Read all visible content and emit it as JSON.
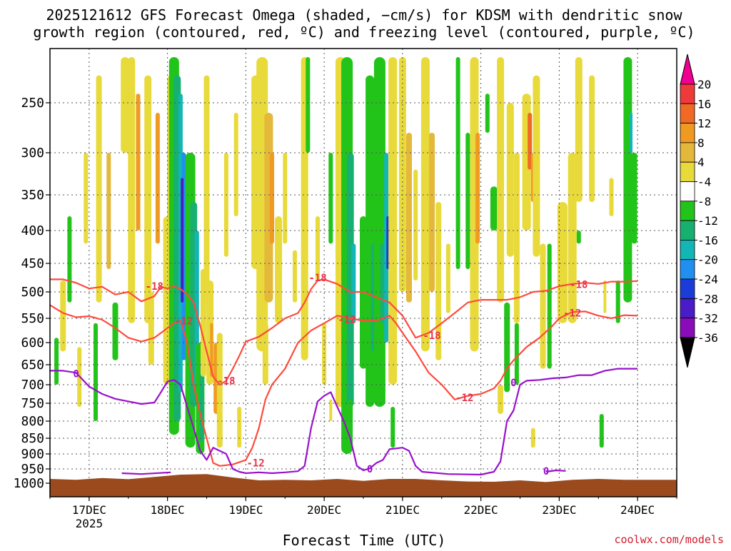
{
  "chart_data": {
    "type": "time-height-section",
    "title_lines": [
      "2025121612 GFS Forecast Omega (shaded, −cm/s) for KDSM with dendritic snow",
      "growth region (contoured, red, ºC) and freezing level (contoured, purple, ºC)"
    ],
    "xlabel": "Forecast Time (UTC)",
    "credit": "coolwx.com/models",
    "x_range_hours": [
      -12,
      180
    ],
    "x_ticks": [
      {
        "hour": 0,
        "label": "17DEC",
        "sublabel": "2025"
      },
      {
        "hour": 24,
        "label": "18DEC",
        "sublabel": ""
      },
      {
        "hour": 48,
        "label": "19DEC",
        "sublabel": ""
      },
      {
        "hour": 72,
        "label": "20DEC",
        "sublabel": ""
      },
      {
        "hour": 96,
        "label": "21DEC",
        "sublabel": ""
      },
      {
        "hour": 120,
        "label": "22DEC",
        "sublabel": ""
      },
      {
        "hour": 144,
        "label": "23DEC",
        "sublabel": ""
      },
      {
        "hour": 168,
        "label": "24DEC",
        "sublabel": ""
      }
    ],
    "y_axis": {
      "unit": "hPa",
      "range": [
        200,
        1025
      ],
      "ticks": [
        250,
        300,
        350,
        400,
        450,
        500,
        550,
        600,
        650,
        700,
        750,
        800,
        850,
        900,
        950,
        1000
      ]
    },
    "colorbar": {
      "levels": [
        20,
        16,
        12,
        8,
        4,
        -4,
        -8,
        -12,
        -16,
        -20,
        -24,
        -28,
        -32,
        -36
      ],
      "colors": [
        "#f00090",
        "#ee3a3a",
        "#f06a26",
        "#f09a22",
        "#e4b83a",
        "#e8da3a",
        "#ffffff",
        "#22c41a",
        "#18b070",
        "#12b6b4",
        "#2090f0",
        "#1c3cd8",
        "#4a1cc8",
        "#8a0cb8",
        "#a8a8a8",
        "#000000"
      ]
    },
    "colors": {
      "ground": "#9b4a1e",
      "dgz_contour": "#ff4a3c",
      "freezing_contour": "#9a10cc",
      "grid": "#555555"
    },
    "contour_labels": {
      "dgz_upper": "-18",
      "dgz_lower": "-12",
      "freezing": "0"
    },
    "series": [
      {
        "name": "-18C isotherm (pressure, hPa)",
        "points": [
          [
            -12,
            478
          ],
          [
            -8,
            478
          ],
          [
            -4,
            484
          ],
          [
            0,
            494
          ],
          [
            4,
            491
          ],
          [
            8,
            505
          ],
          [
            12,
            500
          ],
          [
            16,
            518
          ],
          [
            20,
            508
          ],
          [
            22,
            491
          ],
          [
            24,
            494
          ],
          [
            26,
            490
          ],
          [
            28,
            495
          ],
          [
            30,
            504
          ],
          [
            32,
            520
          ],
          [
            34,
            565
          ],
          [
            36,
            620
          ],
          [
            38,
            680
          ],
          [
            40,
            700
          ],
          [
            42,
            690
          ],
          [
            44,
            660
          ],
          [
            46,
            630
          ],
          [
            48,
            598
          ],
          [
            52,
            588
          ],
          [
            56,
            570
          ],
          [
            60,
            550
          ],
          [
            64,
            540
          ],
          [
            66,
            520
          ],
          [
            68,
            495
          ],
          [
            70,
            480
          ],
          [
            72,
            478
          ],
          [
            76,
            486
          ],
          [
            80,
            500
          ],
          [
            84,
            500
          ],
          [
            88,
            510
          ],
          [
            92,
            520
          ],
          [
            96,
            545
          ],
          [
            100,
            590
          ],
          [
            104,
            580
          ],
          [
            108,
            560
          ],
          [
            112,
            540
          ],
          [
            116,
            520
          ],
          [
            120,
            515
          ],
          [
            124,
            515
          ],
          [
            128,
            515
          ],
          [
            132,
            510
          ],
          [
            136,
            500
          ],
          [
            140,
            498
          ],
          [
            144,
            490
          ],
          [
            148,
            486
          ],
          [
            152,
            484
          ],
          [
            156,
            486
          ],
          [
            160,
            482
          ],
          [
            164,
            482
          ],
          [
            168,
            481
          ]
        ]
      },
      {
        "name": "-12C isotherm (pressure, hPa)",
        "points": [
          [
            -12,
            525
          ],
          [
            -8,
            540
          ],
          [
            -4,
            548
          ],
          [
            0,
            546
          ],
          [
            4,
            553
          ],
          [
            8,
            570
          ],
          [
            12,
            590
          ],
          [
            16,
            598
          ],
          [
            20,
            590
          ],
          [
            24,
            570
          ],
          [
            26,
            560
          ],
          [
            28,
            555
          ],
          [
            30,
            600
          ],
          [
            32,
            700
          ],
          [
            34,
            780
          ],
          [
            36,
            850
          ],
          [
            38,
            930
          ],
          [
            40,
            940
          ],
          [
            44,
            935
          ],
          [
            48,
            920
          ],
          [
            50,
            880
          ],
          [
            52,
            820
          ],
          [
            54,
            740
          ],
          [
            56,
            700
          ],
          [
            58,
            680
          ],
          [
            60,
            660
          ],
          [
            64,
            600
          ],
          [
            68,
            575
          ],
          [
            72,
            560
          ],
          [
            76,
            545
          ],
          [
            80,
            550
          ],
          [
            84,
            555
          ],
          [
            88,
            555
          ],
          [
            92,
            545
          ],
          [
            94,
            560
          ],
          [
            96,
            580
          ],
          [
            100,
            620
          ],
          [
            104,
            670
          ],
          [
            108,
            700
          ],
          [
            112,
            740
          ],
          [
            116,
            730
          ],
          [
            120,
            725
          ],
          [
            124,
            710
          ],
          [
            126,
            690
          ],
          [
            128,
            660
          ],
          [
            130,
            640
          ],
          [
            134,
            610
          ],
          [
            138,
            590
          ],
          [
            142,
            565
          ],
          [
            144,
            550
          ],
          [
            148,
            538
          ],
          [
            152,
            537
          ],
          [
            156,
            545
          ],
          [
            160,
            550
          ],
          [
            164,
            544
          ],
          [
            168,
            545
          ]
        ]
      },
      {
        "name": "0C freezing level (pressure, hPa)",
        "points": [
          [
            -12,
            665
          ],
          [
            -8,
            665
          ],
          [
            -4,
            670
          ],
          [
            0,
            705
          ],
          [
            4,
            725
          ],
          [
            8,
            738
          ],
          [
            12,
            745
          ],
          [
            16,
            752
          ],
          [
            20,
            748
          ],
          [
            22,
            720
          ],
          [
            24,
            692
          ],
          [
            26,
            688
          ],
          [
            28,
            700
          ],
          [
            30,
            760
          ],
          [
            32,
            820
          ],
          [
            34,
            890
          ],
          [
            36,
            920
          ],
          [
            38,
            880
          ],
          [
            40,
            890
          ],
          [
            42,
            900
          ],
          [
            44,
            950
          ],
          [
            46,
            960
          ],
          [
            48,
            965
          ],
          [
            52,
            962
          ],
          [
            56,
            965
          ],
          [
            60,
            962
          ],
          [
            64,
            958
          ],
          [
            66,
            940
          ],
          [
            68,
            820
          ],
          [
            70,
            745
          ],
          [
            72,
            730
          ],
          [
            74,
            720
          ],
          [
            76,
            760
          ],
          [
            78,
            800
          ],
          [
            80,
            850
          ],
          [
            82,
            940
          ],
          [
            84,
            955
          ],
          [
            86,
            948
          ],
          [
            88,
            930
          ],
          [
            90,
            920
          ],
          [
            92,
            885
          ],
          [
            96,
            880
          ],
          [
            98,
            890
          ],
          [
            100,
            940
          ],
          [
            102,
            960
          ],
          [
            110,
            968
          ],
          [
            120,
            970
          ],
          [
            124,
            960
          ],
          [
            126,
            925
          ],
          [
            128,
            800
          ],
          [
            130,
            770
          ],
          [
            132,
            700
          ],
          [
            134,
            690
          ],
          [
            138,
            688
          ],
          [
            142,
            684
          ],
          [
            146,
            682
          ],
          [
            150,
            676
          ],
          [
            154,
            676
          ],
          [
            158,
            665
          ],
          [
            162,
            660
          ],
          [
            168,
            660
          ]
        ]
      }
    ]
  }
}
